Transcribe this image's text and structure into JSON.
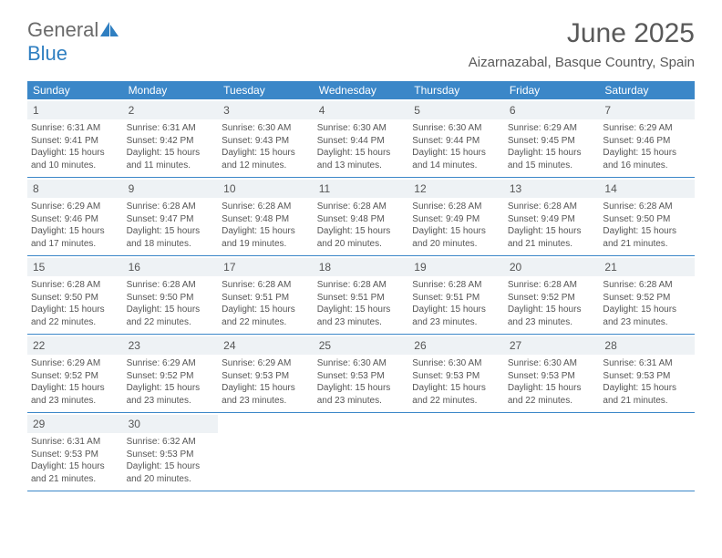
{
  "brand": {
    "part1": "General",
    "part2": "Blue"
  },
  "title": "June 2025",
  "location": "Aizarnazabal, Basque Country, Spain",
  "colors": {
    "header_bg": "#3b87c8",
    "header_text": "#ffffff",
    "daynum_bg": "#eef2f5",
    "text": "#555555",
    "brand_gray": "#6a6a6a",
    "brand_blue": "#2f7fc1"
  },
  "dow": [
    "Sunday",
    "Monday",
    "Tuesday",
    "Wednesday",
    "Thursday",
    "Friday",
    "Saturday"
  ],
  "weeks": [
    [
      {
        "n": "1",
        "sr": "6:31 AM",
        "ss": "9:41 PM",
        "dl": "15 hours and 10 minutes."
      },
      {
        "n": "2",
        "sr": "6:31 AM",
        "ss": "9:42 PM",
        "dl": "15 hours and 11 minutes."
      },
      {
        "n": "3",
        "sr": "6:30 AM",
        "ss": "9:43 PM",
        "dl": "15 hours and 12 minutes."
      },
      {
        "n": "4",
        "sr": "6:30 AM",
        "ss": "9:44 PM",
        "dl": "15 hours and 13 minutes."
      },
      {
        "n": "5",
        "sr": "6:30 AM",
        "ss": "9:44 PM",
        "dl": "15 hours and 14 minutes."
      },
      {
        "n": "6",
        "sr": "6:29 AM",
        "ss": "9:45 PM",
        "dl": "15 hours and 15 minutes."
      },
      {
        "n": "7",
        "sr": "6:29 AM",
        "ss": "9:46 PM",
        "dl": "15 hours and 16 minutes."
      }
    ],
    [
      {
        "n": "8",
        "sr": "6:29 AM",
        "ss": "9:46 PM",
        "dl": "15 hours and 17 minutes."
      },
      {
        "n": "9",
        "sr": "6:28 AM",
        "ss": "9:47 PM",
        "dl": "15 hours and 18 minutes."
      },
      {
        "n": "10",
        "sr": "6:28 AM",
        "ss": "9:48 PM",
        "dl": "15 hours and 19 minutes."
      },
      {
        "n": "11",
        "sr": "6:28 AM",
        "ss": "9:48 PM",
        "dl": "15 hours and 20 minutes."
      },
      {
        "n": "12",
        "sr": "6:28 AM",
        "ss": "9:49 PM",
        "dl": "15 hours and 20 minutes."
      },
      {
        "n": "13",
        "sr": "6:28 AM",
        "ss": "9:49 PM",
        "dl": "15 hours and 21 minutes."
      },
      {
        "n": "14",
        "sr": "6:28 AM",
        "ss": "9:50 PM",
        "dl": "15 hours and 21 minutes."
      }
    ],
    [
      {
        "n": "15",
        "sr": "6:28 AM",
        "ss": "9:50 PM",
        "dl": "15 hours and 22 minutes."
      },
      {
        "n": "16",
        "sr": "6:28 AM",
        "ss": "9:50 PM",
        "dl": "15 hours and 22 minutes."
      },
      {
        "n": "17",
        "sr": "6:28 AM",
        "ss": "9:51 PM",
        "dl": "15 hours and 22 minutes."
      },
      {
        "n": "18",
        "sr": "6:28 AM",
        "ss": "9:51 PM",
        "dl": "15 hours and 23 minutes."
      },
      {
        "n": "19",
        "sr": "6:28 AM",
        "ss": "9:51 PM",
        "dl": "15 hours and 23 minutes."
      },
      {
        "n": "20",
        "sr": "6:28 AM",
        "ss": "9:52 PM",
        "dl": "15 hours and 23 minutes."
      },
      {
        "n": "21",
        "sr": "6:28 AM",
        "ss": "9:52 PM",
        "dl": "15 hours and 23 minutes."
      }
    ],
    [
      {
        "n": "22",
        "sr": "6:29 AM",
        "ss": "9:52 PM",
        "dl": "15 hours and 23 minutes."
      },
      {
        "n": "23",
        "sr": "6:29 AM",
        "ss": "9:52 PM",
        "dl": "15 hours and 23 minutes."
      },
      {
        "n": "24",
        "sr": "6:29 AM",
        "ss": "9:53 PM",
        "dl": "15 hours and 23 minutes."
      },
      {
        "n": "25",
        "sr": "6:30 AM",
        "ss": "9:53 PM",
        "dl": "15 hours and 23 minutes."
      },
      {
        "n": "26",
        "sr": "6:30 AM",
        "ss": "9:53 PM",
        "dl": "15 hours and 22 minutes."
      },
      {
        "n": "27",
        "sr": "6:30 AM",
        "ss": "9:53 PM",
        "dl": "15 hours and 22 minutes."
      },
      {
        "n": "28",
        "sr": "6:31 AM",
        "ss": "9:53 PM",
        "dl": "15 hours and 21 minutes."
      }
    ],
    [
      {
        "n": "29",
        "sr": "6:31 AM",
        "ss": "9:53 PM",
        "dl": "15 hours and 21 minutes."
      },
      {
        "n": "30",
        "sr": "6:32 AM",
        "ss": "9:53 PM",
        "dl": "15 hours and 20 minutes."
      },
      null,
      null,
      null,
      null,
      null
    ]
  ],
  "labels": {
    "sunrise": "Sunrise: ",
    "sunset": "Sunset: ",
    "daylight": "Daylight: "
  }
}
